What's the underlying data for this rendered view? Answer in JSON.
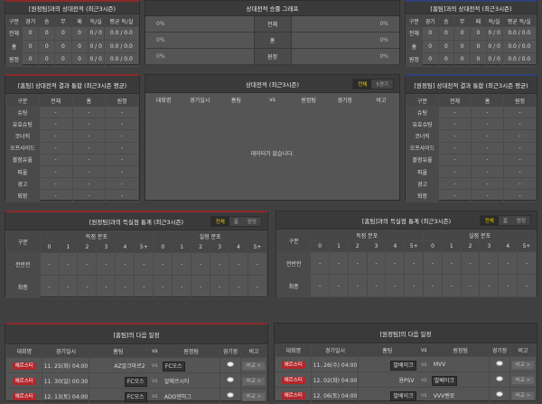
{
  "record_cols": [
    "구분",
    "경기",
    "승",
    "무",
    "패",
    "득/실",
    "평균 득/실"
  ],
  "record_rows": [
    [
      "전체",
      "0",
      "0",
      "0",
      "0",
      "0 / 0",
      "0.0 / 0.0"
    ],
    [
      "홈",
      "0",
      "0",
      "0",
      "0",
      "0 / 0",
      "0.0 / 0.0"
    ],
    [
      "원정",
      "0",
      "0",
      "0",
      "0",
      "0 / 0",
      "0.0 / 0.0"
    ]
  ],
  "left_record": {
    "title": "[원정팀]과의 상대전적 (최근3시즌)"
  },
  "right_record": {
    "title": "[홈팀]과의 상대전적 (최근3시즌)"
  },
  "graph": {
    "title": "상대전적 승률 그래프",
    "rows": [
      {
        "left": "0%",
        "label": "전체",
        "right": "0%"
      },
      {
        "left": "0%",
        "label": "홈",
        "right": "0%"
      },
      {
        "left": "0%",
        "label": "원정",
        "right": "0%"
      }
    ]
  },
  "stat_cols": [
    "구분",
    "전체",
    "홈",
    "원정"
  ],
  "stat_rows": [
    [
      "슈팅",
      "-",
      "-",
      "-"
    ],
    [
      "유효슈팅",
      "-",
      "-",
      "-"
    ],
    [
      "코너킥",
      "-",
      "-",
      "-"
    ],
    [
      "오프사이드",
      "-",
      "-",
      "-"
    ],
    [
      "볼점유율",
      "-",
      "-",
      "-"
    ],
    [
      "파울",
      "-",
      "-",
      "-"
    ],
    [
      "경고",
      "-",
      "-",
      "-"
    ],
    [
      "퇴장",
      "-",
      "-",
      "-"
    ]
  ],
  "left_stats": {
    "title": "[홈팀] 상대전적 결과 통합 (최근3시즌 평균)"
  },
  "right_stats": {
    "title": "[원정팀] 상대전적 결과 통합 (최근3시즌 평균)"
  },
  "h2h": {
    "title": "상대전적 (최근3시즌)",
    "toggle": [
      "전체",
      "5경기"
    ],
    "cols": [
      "대회명",
      "경기일시",
      "홈팀",
      "vs",
      "원정팀",
      "경기장",
      "비고"
    ],
    "empty": "데이터가 없습니다."
  },
  "goals_toggle": [
    "전체",
    "홈",
    "원정"
  ],
  "goals_head": {
    "label": "구분",
    "scored": "득점 분포",
    "conceded": "실점 분포",
    "bins": [
      "0",
      "1",
      "2",
      "3",
      "4",
      "5+"
    ]
  },
  "goals_rows": [
    {
      "label": "전반전",
      "values": [
        "-",
        "-",
        "-",
        "-",
        "-",
        "-",
        "-",
        "-",
        "-",
        "-",
        "-",
        "-"
      ]
    },
    {
      "label": "최종",
      "values": [
        "-",
        "-",
        "-",
        "-",
        "-",
        "-",
        "-",
        "-",
        "-",
        "-",
        "-",
        "-"
      ]
    }
  ],
  "left_goals": {
    "title": "[원정팀]과의 득실점 통계 (최근3시즌)"
  },
  "right_goals": {
    "title": "[홈팀]과의 득실점 통계 (최근3시즌)"
  },
  "sched_cols": [
    "대회명",
    "경기일시",
    "홈팀",
    "vs",
    "원정팀",
    "경기장",
    "비고"
  ],
  "left_sched": {
    "title": "[홈팀]의 다음 일정",
    "rows": [
      {
        "league": "에르스티",
        "date": "11. 25(화) 04:00",
        "home": "AZ알크마르2",
        "away": "FC오스",
        "hl": "away",
        "note": "비교 >"
      },
      {
        "league": "에르스티",
        "date": "11. 30(일) 00:30",
        "home": "FC오스",
        "away": "알메르시티",
        "hl": "home",
        "note": "비교 >"
      },
      {
        "league": "에르스티",
        "date": "12. 13(토) 04:00",
        "home": "FC오스",
        "away": "ADO덴하그",
        "hl": "home",
        "note": "비교 >"
      }
    ]
  },
  "right_sched": {
    "title": "[원정팀]의 다음 일정",
    "rows": [
      {
        "league": "에르스티",
        "date": "11. 26(수) 04:00",
        "home": "발베이크",
        "away": "MVV",
        "hl": "home",
        "note": "비교 >"
      },
      {
        "league": "에르스티",
        "date": "12. 02(화) 04:00",
        "home": "용PSV",
        "away": "발베이크",
        "hl": "away",
        "note": "비교 >"
      },
      {
        "league": "에르스티",
        "date": "12. 06(토) 04:00",
        "home": "발베이크",
        "away": "VVV벤로",
        "hl": "home",
        "note": "비교 >"
      }
    ]
  },
  "colors": {
    "accent_yellow": "#f0d000",
    "badge_red": "#b3262a",
    "home_border": "#8a2a2a",
    "away_border": "#2f3f7a"
  }
}
